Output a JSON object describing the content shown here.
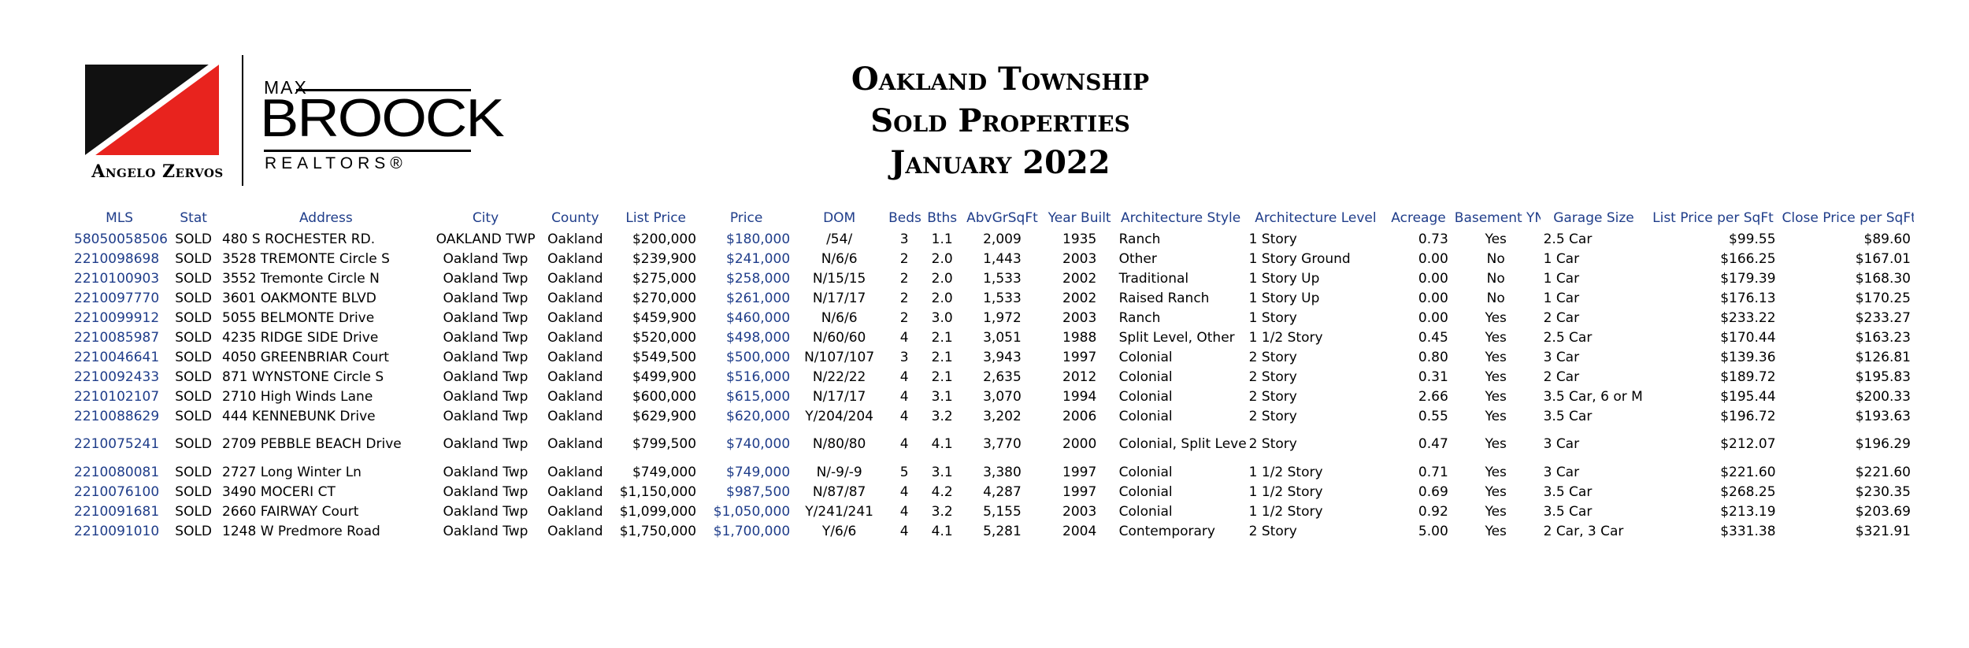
{
  "header": {
    "agent_name": "Angelo Zervos",
    "brand": {
      "max": "MAX",
      "broock": "BROOCK",
      "realtors": "REALTORS®"
    },
    "title_lines": [
      "Oakland Township",
      "Sold Properties",
      "January 2022"
    ]
  },
  "colors": {
    "link_blue": "#1f3d8a",
    "logo_red": "#e8231e",
    "logo_black": "#111111"
  },
  "table": {
    "columns": [
      "MLS",
      "Stat",
      "Address",
      "City",
      "County",
      "List Price",
      "Price",
      "DOM",
      "Beds",
      "Bths",
      "AbvGrSqFt",
      "Year Built",
      "Architecture Style",
      "Architecture Level",
      "Acreage",
      "Basement YN",
      "Garage Size",
      "List Price per SqFt",
      "Close Price per SqFt"
    ],
    "rows": [
      [
        "58050058506",
        "SOLD",
        "480 S ROCHESTER RD.",
        "OAKLAND TWP",
        "Oakland",
        "$200,000",
        "$180,000",
        "/54/",
        "3",
        "1.1",
        "2,009",
        "1935",
        "Ranch",
        "1 Story",
        "0.73",
        "Yes",
        "2.5 Car",
        "$99.55",
        "$89.60"
      ],
      [
        "2210098698",
        "SOLD",
        "3528 TREMONTE Circle S",
        "Oakland Twp",
        "Oakland",
        "$239,900",
        "$241,000",
        "N/6/6",
        "2",
        "2.0",
        "1,443",
        "2003",
        "Other",
        "1 Story Ground",
        "0.00",
        "No",
        "1 Car",
        "$166.25",
        "$167.01"
      ],
      [
        "2210100903",
        "SOLD",
        "3552 Tremonte Circle N",
        "Oakland Twp",
        "Oakland",
        "$275,000",
        "$258,000",
        "N/15/15",
        "2",
        "2.0",
        "1,533",
        "2002",
        "Traditional",
        "1 Story Up",
        "0.00",
        "No",
        "1 Car",
        "$179.39",
        "$168.30"
      ],
      [
        "2210097770",
        "SOLD",
        "3601 OAKMONTE BLVD",
        "Oakland Twp",
        "Oakland",
        "$270,000",
        "$261,000",
        "N/17/17",
        "2",
        "2.0",
        "1,533",
        "2002",
        "Raised Ranch",
        "1 Story Up",
        "0.00",
        "No",
        "1 Car",
        "$176.13",
        "$170.25"
      ],
      [
        "2210099912",
        "SOLD",
        "5055 BELMONTE Drive",
        "Oakland Twp",
        "Oakland",
        "$459,900",
        "$460,000",
        "N/6/6",
        "2",
        "3.0",
        "1,972",
        "2003",
        "Ranch",
        "1 Story",
        "0.00",
        "Yes",
        "2 Car",
        "$233.22",
        "$233.27"
      ],
      [
        "2210085987",
        "SOLD",
        "4235 RIDGE SIDE Drive",
        "Oakland Twp",
        "Oakland",
        "$520,000",
        "$498,000",
        "N/60/60",
        "4",
        "2.1",
        "3,051",
        "1988",
        "Split Level, Other",
        "1 1/2 Story",
        "0.45",
        "Yes",
        "2.5 Car",
        "$170.44",
        "$163.23"
      ],
      [
        "2210046641",
        "SOLD",
        "4050 GREENBRIAR Court",
        "Oakland Twp",
        "Oakland",
        "$549,500",
        "$500,000",
        "N/107/107",
        "3",
        "2.1",
        "3,943",
        "1997",
        "Colonial",
        "2 Story",
        "0.80",
        "Yes",
        "3 Car",
        "$139.36",
        "$126.81"
      ],
      [
        "2210092433",
        "SOLD",
        "871 WYNSTONE Circle S",
        "Oakland Twp",
        "Oakland",
        "$499,900",
        "$516,000",
        "N/22/22",
        "4",
        "2.1",
        "2,635",
        "2012",
        "Colonial",
        "2 Story",
        "0.31",
        "Yes",
        "2 Car",
        "$189.72",
        "$195.83"
      ],
      [
        "2210102107",
        "SOLD",
        "2710 High Winds Lane",
        "Oakland Twp",
        "Oakland",
        "$600,000",
        "$615,000",
        "N/17/17",
        "4",
        "3.1",
        "3,070",
        "1994",
        "Colonial",
        "2 Story",
        "2.66",
        "Yes",
        "3.5 Car, 6 or M",
        "$195.44",
        "$200.33"
      ],
      [
        "2210088629",
        "SOLD",
        "444 KENNEBUNK Drive",
        "Oakland Twp",
        "Oakland",
        "$629,900",
        "$620,000",
        "Y/204/204",
        "4",
        "3.2",
        "3,202",
        "2006",
        "Colonial",
        "2 Story",
        "0.55",
        "Yes",
        "3.5 Car",
        "$196.72",
        "$193.63"
      ],
      [
        "2210075241",
        "SOLD",
        "2709 PEBBLE BEACH Drive",
        "Oakland Twp",
        "Oakland",
        "$799,500",
        "$740,000",
        "N/80/80",
        "4",
        "4.1",
        "3,770",
        "2000",
        "Colonial, Split Level",
        "2 Story",
        "0.47",
        "Yes",
        "3 Car",
        "$212.07",
        "$196.29"
      ],
      [
        "2210080081",
        "SOLD",
        "2727 Long Winter Ln",
        "Oakland Twp",
        "Oakland",
        "$749,000",
        "$749,000",
        "N/-9/-9",
        "5",
        "3.1",
        "3,380",
        "1997",
        "Colonial",
        "1 1/2 Story",
        "0.71",
        "Yes",
        "3 Car",
        "$221.60",
        "$221.60"
      ],
      [
        "2210076100",
        "SOLD",
        "3490 MOCERI CT",
        "Oakland Twp",
        "Oakland",
        "$1,150,000",
        "$987,500",
        "N/87/87",
        "4",
        "4.2",
        "4,287",
        "1997",
        "Colonial",
        "1 1/2 Story",
        "0.69",
        "Yes",
        "3.5 Car",
        "$268.25",
        "$230.35"
      ],
      [
        "2210091681",
        "SOLD",
        "2660 FAIRWAY Court",
        "Oakland Twp",
        "Oakland",
        "$1,099,000",
        "$1,050,000",
        "Y/241/241",
        "4",
        "3.2",
        "5,155",
        "2003",
        "Colonial",
        "1 1/2 Story",
        "0.92",
        "Yes",
        "3.5 Car",
        "$213.19",
        "$203.69"
      ],
      [
        "2210091010",
        "SOLD",
        "1248 W Predmore Road",
        "Oakland Twp",
        "Oakland",
        "$1,750,000",
        "$1,700,000",
        "Y/6/6",
        "4",
        "4.1",
        "5,281",
        "2004",
        "Contemporary",
        "2 Story",
        "5.00",
        "Yes",
        "2 Car, 3 Car",
        "$331.38",
        "$321.91"
      ]
    ]
  }
}
